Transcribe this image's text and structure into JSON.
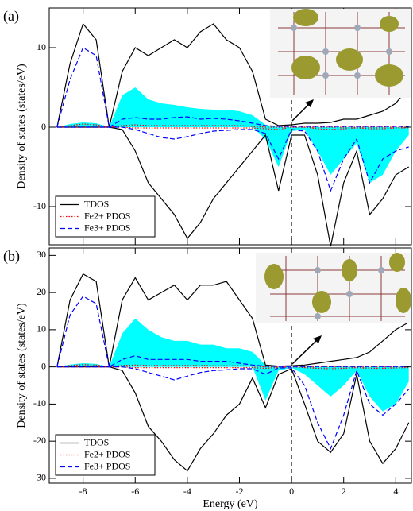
{
  "chart_data": [
    {
      "type": "line",
      "panel_label": "(a)",
      "y_label": "Density of states (states/eV)",
      "xlim": [
        -9.3,
        4.6
      ],
      "xticks": [
        -8,
        -6,
        -4,
        -2,
        0,
        2,
        4
      ],
      "show_xtick_labels": false,
      "ylim": [
        -14.8,
        15
      ],
      "yticks": [
        -10,
        0,
        10
      ],
      "legend": "lower left",
      "x": [
        -9,
        -8.5,
        -8,
        -7.5,
        -7,
        -6.5,
        -6,
        -5.5,
        -5,
        -4.5,
        -4,
        -3.5,
        -3,
        -2.5,
        -2,
        -1.5,
        -1,
        -0.5,
        0,
        0.5,
        1,
        1.5,
        2,
        2.5,
        3,
        3.5,
        4,
        4.5
      ],
      "series": [
        {
          "color": "#00ffff",
          "style": "fill",
          "values": [
            0,
            0.4,
            0.6,
            0.5,
            0,
            4,
            5,
            3.5,
            3,
            2.8,
            2.5,
            2.3,
            2.2,
            2.2,
            2,
            1.5,
            0.3,
            0,
            0,
            0,
            0,
            0,
            0,
            0,
            0,
            0,
            0,
            0
          ]
        },
        {
          "color": "#00ffff",
          "style": "fill",
          "values": [
            0,
            0,
            0,
            0,
            0,
            0,
            0,
            0,
            0,
            0,
            0,
            0,
            0,
            0,
            0,
            0,
            -1.5,
            -5,
            -0.5,
            -0.3,
            -3,
            -6,
            -4,
            -2,
            -7,
            -6,
            -3,
            -1
          ]
        },
        {
          "name": "TDOS",
          "color": "#000000",
          "style": "solid",
          "values": [
            0,
            8,
            13,
            11,
            0,
            7,
            10,
            9,
            10,
            11,
            10,
            12,
            13,
            11,
            10,
            7,
            1,
            0.2,
            0.3,
            0.5,
            0.5,
            0.6,
            1,
            1,
            1.5,
            2,
            3,
            5
          ]
        },
        {
          "color": "#000000",
          "style": "solid",
          "values": [
            0,
            0,
            0,
            0,
            0,
            -0.3,
            -3,
            -7,
            -9,
            -11,
            -14,
            -12,
            -9,
            -7,
            -5,
            -3,
            -1,
            -8,
            -1,
            -1,
            -6,
            -15,
            -7,
            -3,
            -11,
            -9,
            -6,
            -5
          ]
        },
        {
          "name": "Fe2+ PDOS",
          "color": "#ff0000",
          "style": "dotted",
          "values": [
            0,
            0.2,
            0.4,
            0.3,
            0,
            0.2,
            0.3,
            0.2,
            0.2,
            0.2,
            0.2,
            0.2,
            0.2,
            0.2,
            0.2,
            0.1,
            0,
            0,
            0,
            0,
            0,
            0,
            0,
            0,
            0,
            0,
            0,
            0
          ]
        },
        {
          "color": "#ff0000",
          "style": "dotted",
          "values": [
            0,
            0,
            0,
            0,
            0,
            0,
            -0.1,
            -0.1,
            -0.1,
            -0.1,
            -0.1,
            -0.1,
            -0.1,
            -0.1,
            -0.1,
            -0.1,
            -0.2,
            -0.3,
            0,
            0,
            -0.2,
            -0.3,
            -0.2,
            -0.1,
            -0.2,
            -0.2,
            -0.1,
            -0.1
          ]
        },
        {
          "name": "Fe3+ PDOS",
          "color": "#0000ff",
          "style": "dashed",
          "values": [
            0,
            6,
            10,
            9,
            0,
            1,
            1.2,
            1,
            1,
            1.2,
            1.3,
            1,
            1.1,
            1,
            0.8,
            0.5,
            0.2,
            0.1,
            0.1,
            0.1,
            0.1,
            0.1,
            0.1,
            0.1,
            0.1,
            0.1,
            0.1,
            0.1
          ]
        },
        {
          "color": "#0000ff",
          "style": "dashed",
          "values": [
            0,
            0,
            0,
            0,
            0,
            0,
            -0.3,
            -0.8,
            -1.3,
            -1.5,
            -1.2,
            -0.8,
            -0.5,
            -0.4,
            -0.3,
            -0.3,
            -0.8,
            -4,
            -0.3,
            -0.5,
            -3,
            -8,
            -4,
            -1.5,
            -7,
            -4,
            -3,
            -2.5
          ]
        }
      ]
    },
    {
      "type": "line",
      "panel_label": "(b)",
      "y_label": "Density of states (states/eV)",
      "x_label": "Energy (eV)",
      "xlim": [
        -9.3,
        4.6
      ],
      "xticks": [
        -8,
        -6,
        -4,
        -2,
        0,
        2,
        4
      ],
      "show_xtick_labels": true,
      "ylim": [
        -31.3,
        32
      ],
      "yticks": [
        -30,
        -20,
        -10,
        0,
        10,
        20,
        30
      ],
      "legend": "lower left",
      "x": [
        -9,
        -8.5,
        -8,
        -7.5,
        -7,
        -6.5,
        -6,
        -5.5,
        -5,
        -4.5,
        -4,
        -3.5,
        -3,
        -2.5,
        -2,
        -1.5,
        -1,
        -0.5,
        0,
        0.5,
        1,
        1.5,
        2,
        2.5,
        3,
        3.5,
        4,
        4.5
      ],
      "series": [
        {
          "color": "#00ffff",
          "style": "fill",
          "values": [
            0,
            0.6,
            1,
            0.8,
            0,
            9,
            13,
            10,
            8,
            7,
            7,
            6,
            6,
            5,
            5,
            4,
            0.5,
            0,
            0,
            0,
            0,
            0,
            0,
            0,
            0,
            0,
            0,
            0
          ]
        },
        {
          "color": "#00ffff",
          "style": "fill",
          "values": [
            0,
            0,
            0,
            0,
            0,
            0,
            0,
            0,
            0,
            0,
            0,
            0,
            0,
            0,
            0,
            0,
            -9,
            -1,
            -0.2,
            -2,
            -5,
            -8,
            -5,
            -1,
            -8,
            -12,
            -10,
            -4
          ]
        },
        {
          "name": "TDOS",
          "color": "#000000",
          "style": "solid",
          "values": [
            0,
            18,
            25,
            23,
            0,
            18,
            24,
            18,
            20,
            22,
            18,
            22,
            22,
            23,
            18,
            13,
            0.5,
            0.2,
            0.3,
            0.5,
            1,
            1.5,
            2,
            2.5,
            4,
            7,
            10,
            12
          ]
        },
        {
          "color": "#000000",
          "style": "solid",
          "values": [
            0,
            0,
            0,
            0,
            0,
            -1,
            -7,
            -16,
            -20,
            -25,
            -28,
            -22,
            -18,
            -13,
            -10,
            -3,
            -11,
            -2,
            -0.5,
            -10,
            -20,
            -23,
            -18,
            -2,
            -20,
            -26,
            -22,
            -15
          ]
        },
        {
          "name": "Fe2+ PDOS",
          "color": "#ff0000",
          "style": "dotted",
          "values": [
            0,
            0.4,
            0.6,
            0.5,
            0,
            0.4,
            0.5,
            0.4,
            0.4,
            0.4,
            0.4,
            0.4,
            0.3,
            0.3,
            0.3,
            0.2,
            0,
            0,
            0,
            0,
            0,
            0,
            0,
            0,
            0,
            0,
            0,
            0
          ]
        },
        {
          "color": "#ff0000",
          "style": "dotted",
          "values": [
            0,
            0,
            0,
            0,
            0,
            0,
            -0.2,
            -0.2,
            -0.2,
            -0.2,
            -0.2,
            -0.2,
            -0.2,
            -0.2,
            -0.2,
            -0.2,
            -0.4,
            -0.2,
            0,
            -0.2,
            -0.4,
            -0.5,
            -0.4,
            -0.2,
            -0.4,
            -0.4,
            -0.3,
            -0.2
          ]
        },
        {
          "name": "Fe3+ PDOS",
          "color": "#0000ff",
          "style": "dashed",
          "values": [
            0,
            14,
            19,
            17,
            0,
            2,
            3,
            2,
            2,
            2,
            2,
            1.5,
            1.5,
            1.5,
            1,
            0.5,
            0.2,
            0.1,
            0.1,
            0.1,
            0.1,
            0.1,
            0.1,
            0.1,
            0.1,
            0.1,
            0.1,
            0.1
          ]
        },
        {
          "color": "#0000ff",
          "style": "dashed",
          "values": [
            0,
            0,
            0,
            0,
            0,
            0,
            -0.5,
            -1.5,
            -2.5,
            -3.5,
            -2.5,
            -1.5,
            -1,
            -0.8,
            -0.5,
            -0.5,
            -2,
            -0.3,
            -0.3,
            -5,
            -15,
            -22,
            -13,
            -1,
            -10,
            -13,
            -10,
            -6
          ]
        }
      ]
    }
  ]
}
